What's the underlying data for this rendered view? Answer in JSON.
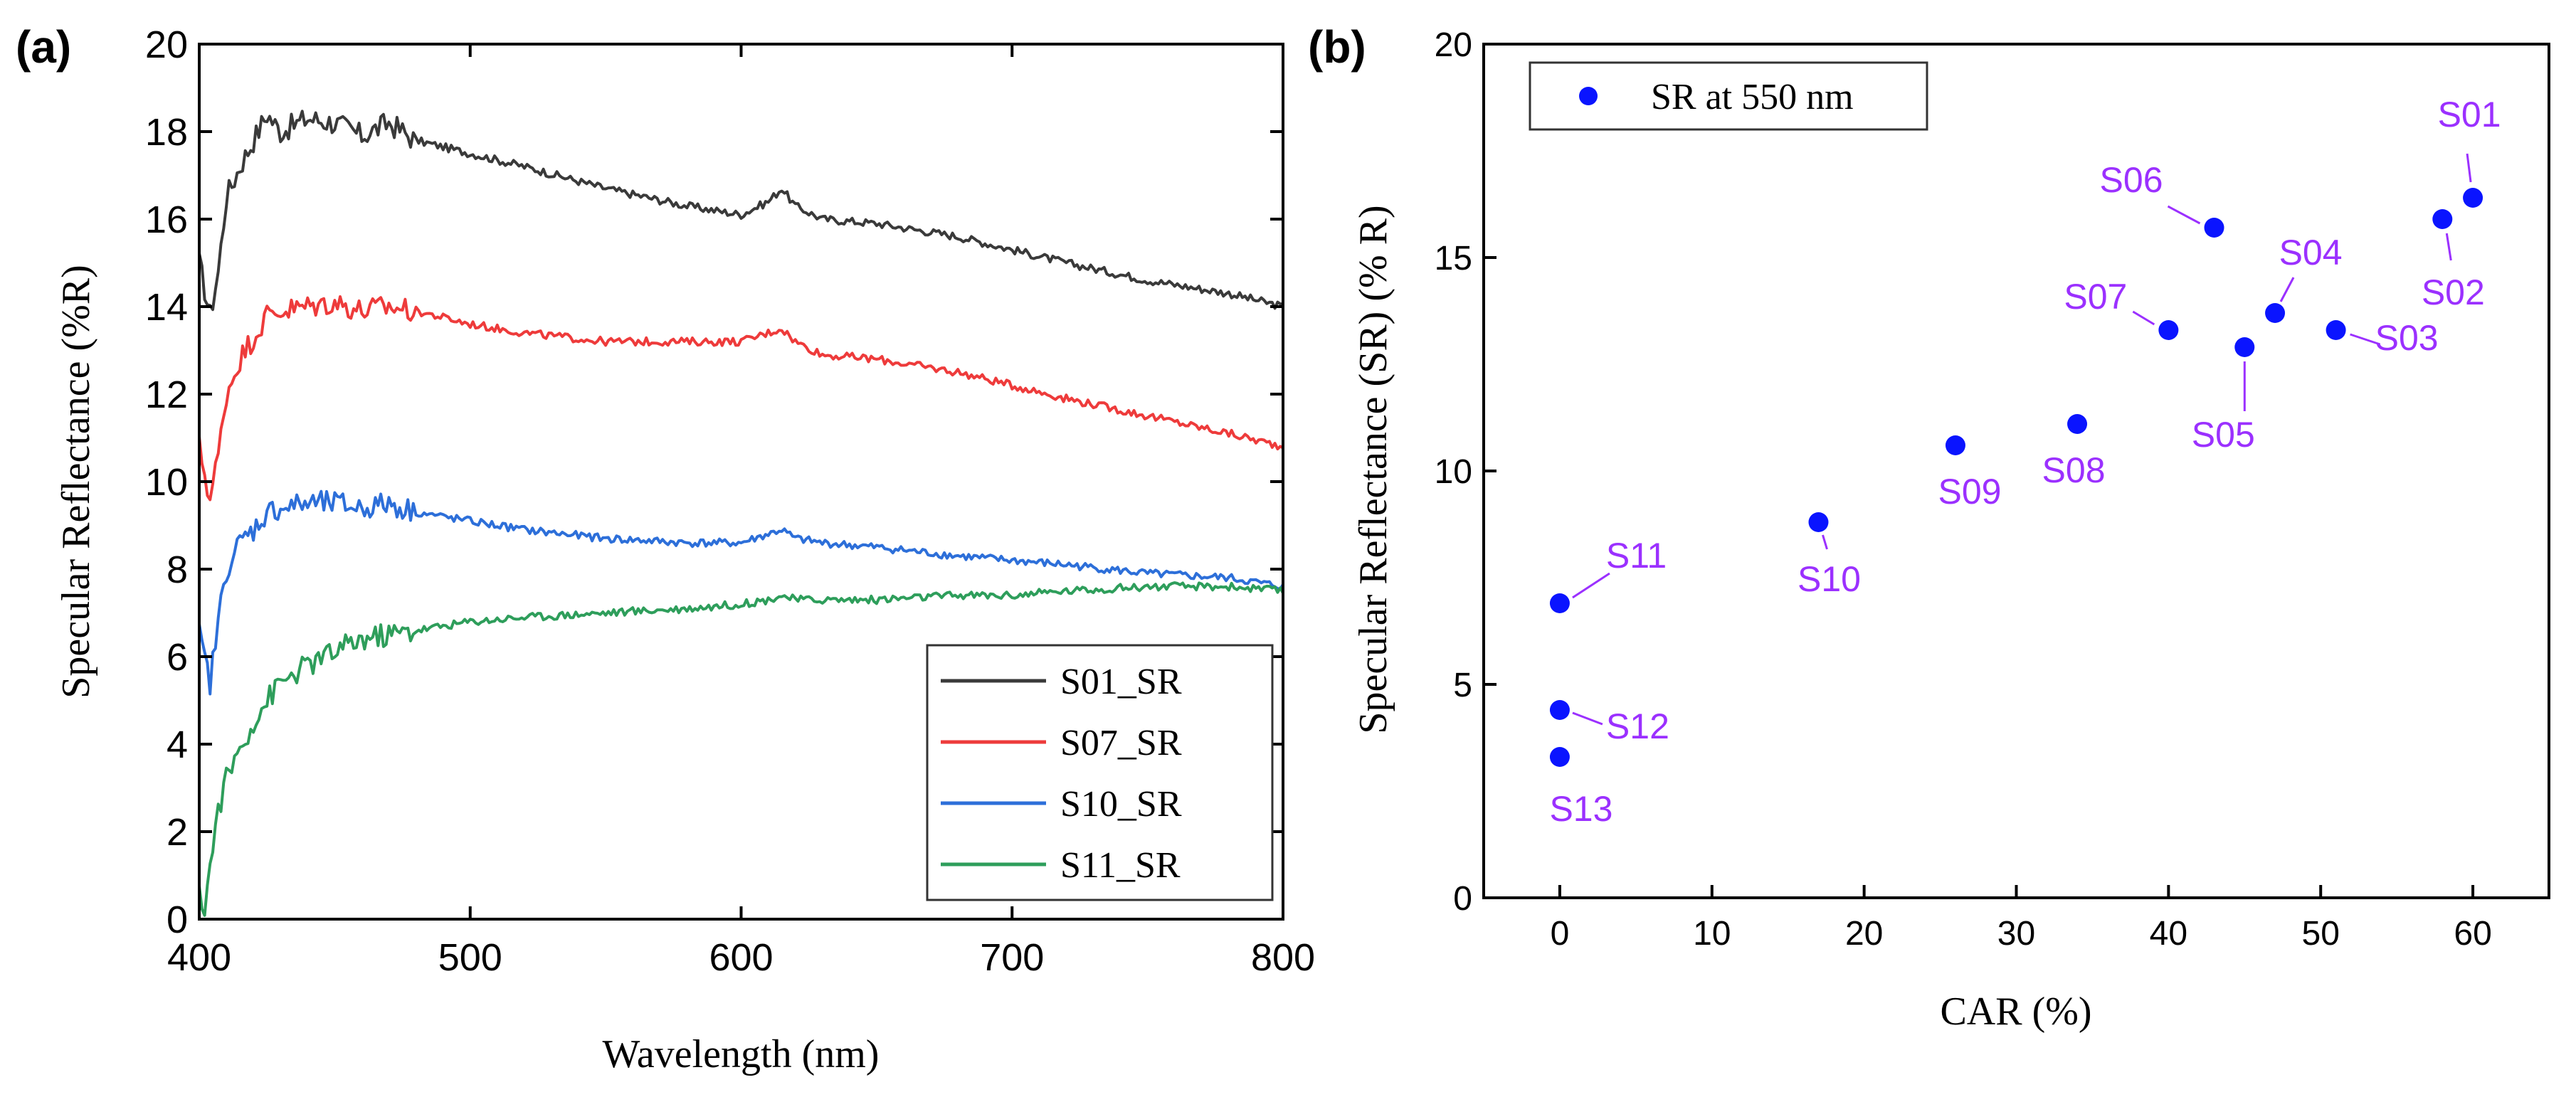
{
  "chart_data": [
    {
      "type": "line",
      "panel_label": "(a)",
      "xlabel": "Wavelength (nm)",
      "ylabel": "Specular Reflectance (%R)",
      "xlim": [
        400,
        800
      ],
      "ylim": [
        0,
        20
      ],
      "xticks": [
        "400",
        "500",
        "600",
        "700",
        "800"
      ],
      "yticks": [
        "0",
        "2",
        "4",
        "6",
        "8",
        "10",
        "12",
        "14",
        "16",
        "18",
        "20"
      ],
      "legend_position": "bottom-right",
      "series": [
        {
          "name": "S01_SR",
          "color": "#3a3a3a",
          "x": [
            400,
            404,
            407,
            410,
            415,
            420,
            425,
            430,
            440,
            450,
            460,
            470,
            480,
            500,
            520,
            550,
            580,
            600,
            610,
            615,
            620,
            630,
            650,
            680,
            700,
            720,
            750,
            780,
            800
          ],
          "y": [
            15.0,
            13.8,
            14.8,
            16.5,
            17.2,
            17.8,
            18.4,
            18.0,
            18.3,
            18.2,
            17.9,
            18.2,
            17.8,
            17.5,
            17.2,
            16.7,
            16.3,
            16.1,
            16.4,
            16.7,
            16.3,
            16.0,
            15.9,
            15.6,
            15.3,
            15.0,
            14.6,
            14.3,
            14.0
          ]
        },
        {
          "name": "S07_SR",
          "color": "#ee3b3b",
          "x": [
            400,
            404,
            407,
            410,
            415,
            420,
            425,
            430,
            440,
            450,
            460,
            470,
            480,
            500,
            520,
            550,
            580,
            600,
            610,
            615,
            620,
            630,
            650,
            680,
            700,
            720,
            750,
            780,
            800
          ],
          "y": [
            10.8,
            9.6,
            10.6,
            12.0,
            12.8,
            13.3,
            13.8,
            13.9,
            14.0,
            14.1,
            13.9,
            14.0,
            13.9,
            13.6,
            13.4,
            13.2,
            13.2,
            13.2,
            13.4,
            13.5,
            13.2,
            12.9,
            12.8,
            12.5,
            12.2,
            11.9,
            11.5,
            11.1,
            10.8
          ]
        },
        {
          "name": "S10_SR",
          "color": "#2d6fd9",
          "x": [
            400,
            404,
            407,
            410,
            415,
            420,
            425,
            430,
            440,
            450,
            460,
            470,
            480,
            500,
            520,
            550,
            580,
            600,
            610,
            615,
            620,
            630,
            650,
            680,
            700,
            720,
            750,
            780,
            800
          ],
          "y": [
            6.5,
            5.4,
            6.8,
            8.0,
            8.6,
            8.9,
            9.3,
            9.4,
            9.5,
            9.5,
            9.4,
            9.5,
            9.3,
            9.1,
            8.9,
            8.7,
            8.6,
            8.6,
            8.8,
            8.9,
            8.7,
            8.6,
            8.5,
            8.3,
            8.2,
            8.1,
            7.9,
            7.8,
            7.6
          ]
        },
        {
          "name": "S11_SR",
          "color": "#2e9e5b",
          "x": [
            400,
            402,
            404,
            407,
            410,
            415,
            420,
            425,
            430,
            440,
            450,
            460,
            470,
            480,
            500,
            520,
            550,
            580,
            600,
            610,
            615,
            620,
            630,
            650,
            680,
            700,
            720,
            750,
            780,
            800
          ],
          "y": [
            0.5,
            0.3,
            1.2,
            2.5,
            3.2,
            3.9,
            4.5,
            5.0,
            5.4,
            5.8,
            6.1,
            6.4,
            6.5,
            6.6,
            6.8,
            6.9,
            7.0,
            7.1,
            7.2,
            7.3,
            7.4,
            7.3,
            7.3,
            7.3,
            7.4,
            7.4,
            7.5,
            7.6,
            7.6,
            7.5
          ]
        }
      ]
    },
    {
      "type": "scatter",
      "panel_label": "(b)",
      "xlabel": "CAR (%)",
      "ylabel": "Specular Reflectance (SR) (% R)",
      "xlim": [
        -5,
        65
      ],
      "ylim": [
        0,
        20
      ],
      "xticks": [
        "0",
        "10",
        "20",
        "30",
        "40",
        "50",
        "60"
      ],
      "yticks": [
        "0",
        "5",
        "10",
        "15",
        "20"
      ],
      "legend_position": "top-left",
      "marker_color": "#0a14ff",
      "label_color": "#9b30ff",
      "series": [
        {
          "name": "SR at 550 nm",
          "points": [
            {
              "label": "S01",
              "x": 60,
              "y": 16.4
            },
            {
              "label": "S02",
              "x": 58,
              "y": 15.9
            },
            {
              "label": "S03",
              "x": 51,
              "y": 13.3
            },
            {
              "label": "S04",
              "x": 47,
              "y": 13.7
            },
            {
              "label": "S05",
              "x": 45,
              "y": 12.9
            },
            {
              "label": "S06",
              "x": 43,
              "y": 15.7
            },
            {
              "label": "S07",
              "x": 40,
              "y": 13.3
            },
            {
              "label": "S08",
              "x": 34,
              "y": 11.1
            },
            {
              "label": "S09",
              "x": 26,
              "y": 10.6
            },
            {
              "label": "S10",
              "x": 17,
              "y": 8.8
            },
            {
              "label": "S11",
              "x": 0,
              "y": 6.9
            },
            {
              "label": "S12",
              "x": 0,
              "y": 4.4
            },
            {
              "label": "S13",
              "x": 0,
              "y": 3.3
            }
          ]
        }
      ]
    }
  ]
}
